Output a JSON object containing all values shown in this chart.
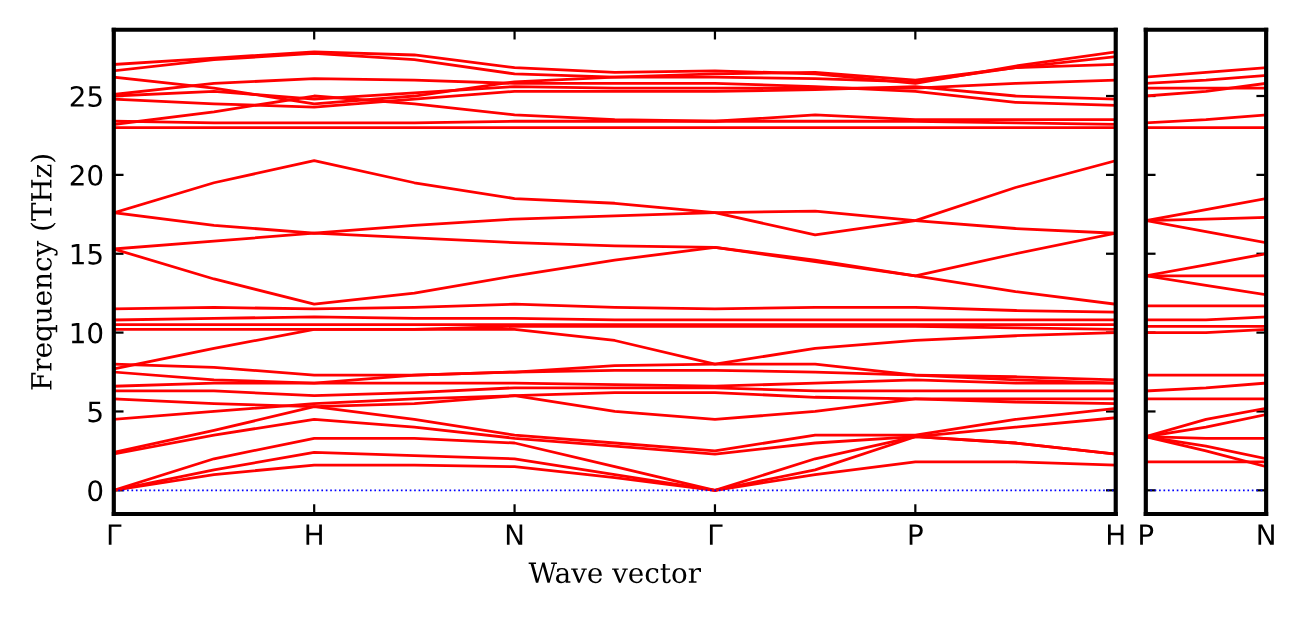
{
  "chart_data": [
    {
      "type": "line",
      "xlabel": "Wave vector",
      "ylabel": "Frequency (THz)",
      "categories": [
        "Γ",
        null,
        "H",
        null,
        "N",
        null,
        "Γ",
        null,
        "P",
        null,
        "H"
      ],
      "ylim": [
        -1.5,
        29.2
      ],
      "yticks": [
        0,
        5,
        10,
        15,
        20,
        25
      ],
      "grid": false,
      "legend": false,
      "marker": "none",
      "line_style": "solid",
      "ref_lines": [
        {
          "axis": "y",
          "value": 0,
          "label": null,
          "color": "#0000ff",
          "line_style": "dotted"
        }
      ],
      "series": [
        {
          "color": "#ff0000",
          "values": [
            0,
            1.0,
            1.6,
            1.6,
            1.5,
            0.8,
            0,
            1.0,
            1.8,
            1.8,
            1.6
          ]
        },
        {
          "color": "#ff0000",
          "values": [
            0,
            1.3,
            2.4,
            2.2,
            2.0,
            1.0,
            0,
            1.3,
            3.4,
            3.0,
            2.3
          ]
        },
        {
          "color": "#ff0000",
          "values": [
            0,
            2.0,
            3.3,
            3.3,
            3.0,
            1.5,
            0,
            2.0,
            3.4,
            4.0,
            4.6
          ]
        },
        {
          "color": "#ff0000",
          "values": [
            2.3,
            3.5,
            4.5,
            4.0,
            3.3,
            2.8,
            2.3,
            3.0,
            3.4,
            3.0,
            2.3
          ]
        },
        {
          "color": "#ff0000",
          "values": [
            2.4,
            3.8,
            5.3,
            4.5,
            3.5,
            3.0,
            2.5,
            3.5,
            3.5,
            4.5,
            5.2
          ]
        },
        {
          "color": "#ff0000",
          "values": [
            4.5,
            5.0,
            5.5,
            5.8,
            6.0,
            5.0,
            4.5,
            5.0,
            5.8,
            5.8,
            5.8
          ]
        },
        {
          "color": "#ff0000",
          "values": [
            5.8,
            5.5,
            5.3,
            5.5,
            6.0,
            6.2,
            6.2,
            5.9,
            5.8,
            5.6,
            5.5
          ]
        },
        {
          "color": "#ff0000",
          "values": [
            6.3,
            6.3,
            6.0,
            6.2,
            6.5,
            6.5,
            6.5,
            6.3,
            6.3,
            6.3,
            6.3
          ]
        },
        {
          "color": "#ff0000",
          "values": [
            6.6,
            6.8,
            6.8,
            6.8,
            6.8,
            6.7,
            6.6,
            6.8,
            7.0,
            6.8,
            6.8
          ]
        },
        {
          "color": "#ff0000",
          "values": [
            7.5,
            7.0,
            6.8,
            7.3,
            7.5,
            7.6,
            7.6,
            7.5,
            7.3,
            7.2,
            7.0
          ]
        },
        {
          "color": "#ff0000",
          "values": [
            7.7,
            9.0,
            10.2,
            10.2,
            10.2,
            9.5,
            8.0,
            9.0,
            9.5,
            9.8,
            10.0
          ]
        },
        {
          "color": "#ff0000",
          "values": [
            8.0,
            7.8,
            7.3,
            7.3,
            7.5,
            7.9,
            8.0,
            8.0,
            7.3,
            7.0,
            6.8
          ]
        },
        {
          "color": "#ff0000",
          "values": [
            10.2,
            10.2,
            10.2,
            10.2,
            10.4,
            10.4,
            10.4,
            10.4,
            10.4,
            10.3,
            10.2
          ]
        },
        {
          "color": "#ff0000",
          "values": [
            10.5,
            10.5,
            10.5,
            10.5,
            10.5,
            10.5,
            10.5,
            10.5,
            10.5,
            10.5,
            10.5
          ]
        },
        {
          "color": "#ff0000",
          "values": [
            10.8,
            10.9,
            11.0,
            10.9,
            10.9,
            10.8,
            10.8,
            10.8,
            10.8,
            10.8,
            10.8
          ]
        },
        {
          "color": "#ff0000",
          "values": [
            11.5,
            11.6,
            11.5,
            11.6,
            11.8,
            11.6,
            11.5,
            11.6,
            11.6,
            11.4,
            11.3
          ]
        },
        {
          "color": "#ff0000",
          "values": [
            15.3,
            13.4,
            11.8,
            12.5,
            13.6,
            14.6,
            15.4,
            14.5,
            13.6,
            12.6,
            11.8
          ]
        },
        {
          "color": "#ff0000",
          "values": [
            15.3,
            15.8,
            16.3,
            16.0,
            15.7,
            15.5,
            15.4,
            14.6,
            13.6,
            15.0,
            16.3
          ]
        },
        {
          "color": "#ff0000",
          "values": [
            17.6,
            16.8,
            16.3,
            16.8,
            17.2,
            17.4,
            17.6,
            17.7,
            17.1,
            16.6,
            16.3
          ]
        },
        {
          "color": "#ff0000",
          "values": [
            17.6,
            19.5,
            20.9,
            19.5,
            18.5,
            18.2,
            17.6,
            16.2,
            17.1,
            19.2,
            20.9
          ]
        },
        {
          "color": "#ff0000",
          "values": [
            23.0,
            23.0,
            23.0,
            23.0,
            23.0,
            23.0,
            23.0,
            23.0,
            23.0,
            23.0,
            23.0
          ]
        },
        {
          "color": "#ff0000",
          "values": [
            23.4,
            23.3,
            23.3,
            23.3,
            23.4,
            23.4,
            23.4,
            23.4,
            23.4,
            23.3,
            23.2
          ]
        },
        {
          "color": "#ff0000",
          "values": [
            23.2,
            24.0,
            25.0,
            24.5,
            23.8,
            23.5,
            23.4,
            23.8,
            23.5,
            23.5,
            23.5
          ]
        },
        {
          "color": "#ff0000",
          "values": [
            24.8,
            24.5,
            24.3,
            24.8,
            25.3,
            25.3,
            25.3,
            25.4,
            25.6,
            25.0,
            24.8
          ]
        },
        {
          "color": "#ff0000",
          "values": [
            25.0,
            25.3,
            24.8,
            25.2,
            25.6,
            25.5,
            25.5,
            25.5,
            25.5,
            25.8,
            26.0
          ]
        },
        {
          "color": "#ff0000",
          "values": [
            25.1,
            25.8,
            26.1,
            26.0,
            25.8,
            25.8,
            25.8,
            25.6,
            25.3,
            24.6,
            24.4
          ]
        },
        {
          "color": "#ff0000",
          "values": [
            26.2,
            25.5,
            24.5,
            25.0,
            25.9,
            26.2,
            26.2,
            26.1,
            25.9,
            26.8,
            27.5
          ]
        },
        {
          "color": "#ff0000",
          "values": [
            26.6,
            27.3,
            27.7,
            27.3,
            26.4,
            26.2,
            26.4,
            26.5,
            26.0,
            26.8,
            27.0
          ]
        },
        {
          "color": "#ff0000",
          "values": [
            27.0,
            27.4,
            27.8,
            27.6,
            26.8,
            26.5,
            26.6,
            26.4,
            25.8,
            26.9,
            27.8
          ]
        }
      ]
    },
    {
      "type": "line",
      "categories": [
        "P",
        null,
        "N"
      ],
      "ylim": [
        -1.5,
        29.2
      ],
      "yticks": [
        0,
        5,
        10,
        15,
        20,
        25
      ],
      "tick_labels": "x",
      "grid": false,
      "legend": false,
      "marker": "none",
      "line_style": "solid",
      "ref_lines": [
        {
          "axis": "y",
          "value": 0,
          "label": null,
          "color": "#0000ff",
          "line_style": "dotted"
        }
      ],
      "series": [
        {
          "color": "#ff0000",
          "values": [
            1.8,
            1.8,
            1.8
          ]
        },
        {
          "color": "#ff0000",
          "values": [
            3.4,
            2.5,
            1.5
          ]
        },
        {
          "color": "#ff0000",
          "values": [
            3.4,
            2.8,
            2.0
          ]
        },
        {
          "color": "#ff0000",
          "values": [
            3.4,
            3.3,
            3.3
          ]
        },
        {
          "color": "#ff0000",
          "values": [
            3.4,
            4.0,
            4.8
          ]
        },
        {
          "color": "#ff0000",
          "values": [
            3.4,
            4.5,
            5.2
          ]
        },
        {
          "color": "#ff0000",
          "values": [
            5.8,
            5.8,
            5.8
          ]
        },
        {
          "color": "#ff0000",
          "values": [
            6.3,
            6.5,
            6.8
          ]
        },
        {
          "color": "#ff0000",
          "values": [
            7.3,
            7.3,
            7.3
          ]
        },
        {
          "color": "#ff0000",
          "values": [
            10.0,
            10.0,
            10.2
          ]
        },
        {
          "color": "#ff0000",
          "values": [
            10.4,
            10.4,
            10.4
          ]
        },
        {
          "color": "#ff0000",
          "values": [
            10.8,
            10.8,
            11.0
          ]
        },
        {
          "color": "#ff0000",
          "values": [
            11.7,
            11.7,
            11.7
          ]
        },
        {
          "color": "#ff0000",
          "values": [
            13.6,
            14.3,
            15.0
          ]
        },
        {
          "color": "#ff0000",
          "values": [
            13.6,
            13.6,
            13.6
          ]
        },
        {
          "color": "#ff0000",
          "values": [
            13.6,
            13.0,
            12.4
          ]
        },
        {
          "color": "#ff0000",
          "values": [
            17.1,
            17.8,
            18.5
          ]
        },
        {
          "color": "#ff0000",
          "values": [
            17.1,
            17.2,
            17.3
          ]
        },
        {
          "color": "#ff0000",
          "values": [
            17.1,
            16.4,
            15.7
          ]
        },
        {
          "color": "#ff0000",
          "values": [
            23.0,
            23.0,
            23.0
          ]
        },
        {
          "color": "#ff0000",
          "values": [
            23.3,
            23.5,
            23.8
          ]
        },
        {
          "color": "#ff0000",
          "values": [
            25.0,
            25.3,
            25.8
          ]
        },
        {
          "color": "#ff0000",
          "values": [
            25.5,
            25.5,
            25.5
          ]
        },
        {
          "color": "#ff0000",
          "values": [
            25.8,
            26.0,
            26.3
          ]
        },
        {
          "color": "#ff0000",
          "values": [
            26.2,
            26.5,
            26.8
          ]
        }
      ]
    }
  ]
}
